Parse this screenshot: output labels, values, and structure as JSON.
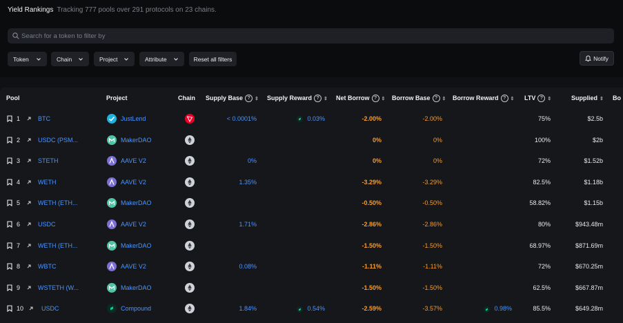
{
  "header": {
    "title": "Yield Rankings",
    "subtitle": "Tracking 777 pools over 291 protocols on 23 chains."
  },
  "search": {
    "placeholder": "Search for a token to filter by",
    "value": ""
  },
  "filters": [
    {
      "label": "Token"
    },
    {
      "label": "Chain"
    },
    {
      "label": "Project"
    },
    {
      "label": "Attribute"
    }
  ],
  "reset_label": "Reset all filters",
  "notify_label": "Notify",
  "columns": {
    "pool": "Pool",
    "project": "Project",
    "chain": "Chain",
    "supply_base": "Supply Base",
    "supply_reward": "Supply Reward",
    "net_borrow": "Net Borrow",
    "borrow_base": "Borrow Base",
    "borrow_reward": "Borrow Reward",
    "ltv": "LTV",
    "supplied": "Supplied",
    "borrowed": "Bo"
  },
  "colors": {
    "link": "#4b94ff",
    "orange": "#f89a2a",
    "justlend": "#1fb3e0",
    "makerdao": "#4fc3a4",
    "aave": "#7b6fd6",
    "compound": "#00d395",
    "tron": "#ef0027",
    "ethereum": "#cfd2d8"
  },
  "rows": [
    {
      "rank": "1",
      "pool": "BTC",
      "project": "JustLend",
      "project_logo": "justlend",
      "chain": "tron",
      "supply_base": "< 0.0001%",
      "supply_reward": "0.03%",
      "net_borrow": "-2.00%",
      "borrow_base": "-2.00%",
      "borrow_reward": "",
      "ltv": "75%",
      "supplied": "$2.5b"
    },
    {
      "rank": "2",
      "pool": "USDC (PSM...",
      "project": "MakerDAO",
      "project_logo": "makerdao",
      "chain": "ethereum",
      "supply_base": "",
      "supply_reward": "",
      "net_borrow": "0%",
      "borrow_base": "0%",
      "borrow_reward": "",
      "ltv": "100%",
      "supplied": "$2b"
    },
    {
      "rank": "3",
      "pool": "STETH",
      "project": "AAVE V2",
      "project_logo": "aave",
      "chain": "ethereum",
      "supply_base": "0%",
      "supply_reward": "",
      "net_borrow": "0%",
      "borrow_base": "0%",
      "borrow_reward": "",
      "ltv": "72%",
      "supplied": "$1.52b"
    },
    {
      "rank": "4",
      "pool": "WETH",
      "project": "AAVE V2",
      "project_logo": "aave",
      "chain": "ethereum",
      "supply_base": "1.35%",
      "supply_reward": "",
      "net_borrow": "-3.29%",
      "borrow_base": "-3.29%",
      "borrow_reward": "",
      "ltv": "82.5%",
      "supplied": "$1.18b"
    },
    {
      "rank": "5",
      "pool": "WETH (ETH...",
      "project": "MakerDAO",
      "project_logo": "makerdao",
      "chain": "ethereum",
      "supply_base": "",
      "supply_reward": "",
      "net_borrow": "-0.50%",
      "borrow_base": "-0.50%",
      "borrow_reward": "",
      "ltv": "58.82%",
      "supplied": "$1.15b"
    },
    {
      "rank": "6",
      "pool": "USDC",
      "project": "AAVE V2",
      "project_logo": "aave",
      "chain": "ethereum",
      "supply_base": "1.71%",
      "supply_reward": "",
      "net_borrow": "-2.86%",
      "borrow_base": "-2.86%",
      "borrow_reward": "",
      "ltv": "80%",
      "supplied": "$943.48m"
    },
    {
      "rank": "7",
      "pool": "WETH (ETH...",
      "project": "MakerDAO",
      "project_logo": "makerdao",
      "chain": "ethereum",
      "supply_base": "",
      "supply_reward": "",
      "net_borrow": "-1.50%",
      "borrow_base": "-1.50%",
      "borrow_reward": "",
      "ltv": "68.97%",
      "supplied": "$871.69m"
    },
    {
      "rank": "8",
      "pool": "WBTC",
      "project": "AAVE V2",
      "project_logo": "aave",
      "chain": "ethereum",
      "supply_base": "0.08%",
      "supply_reward": "",
      "net_borrow": "-1.11%",
      "borrow_base": "-1.11%",
      "borrow_reward": "",
      "ltv": "72%",
      "supplied": "$670.25m"
    },
    {
      "rank": "9",
      "pool": "WSTETH (W...",
      "project": "MakerDAO",
      "project_logo": "makerdao",
      "chain": "ethereum",
      "supply_base": "",
      "supply_reward": "",
      "net_borrow": "-1.50%",
      "borrow_base": "-1.50%",
      "borrow_reward": "",
      "ltv": "62.5%",
      "supplied": "$667.87m"
    },
    {
      "rank": "10",
      "pool": "USDC",
      "project": "Compound",
      "project_logo": "compound",
      "chain": "ethereum",
      "supply_base": "1.84%",
      "supply_reward": "0.54%",
      "net_borrow": "-2.59%",
      "borrow_base": "-3.57%",
      "borrow_reward": "0.98%",
      "ltv": "85.5%",
      "supplied": "$649.28m"
    }
  ]
}
